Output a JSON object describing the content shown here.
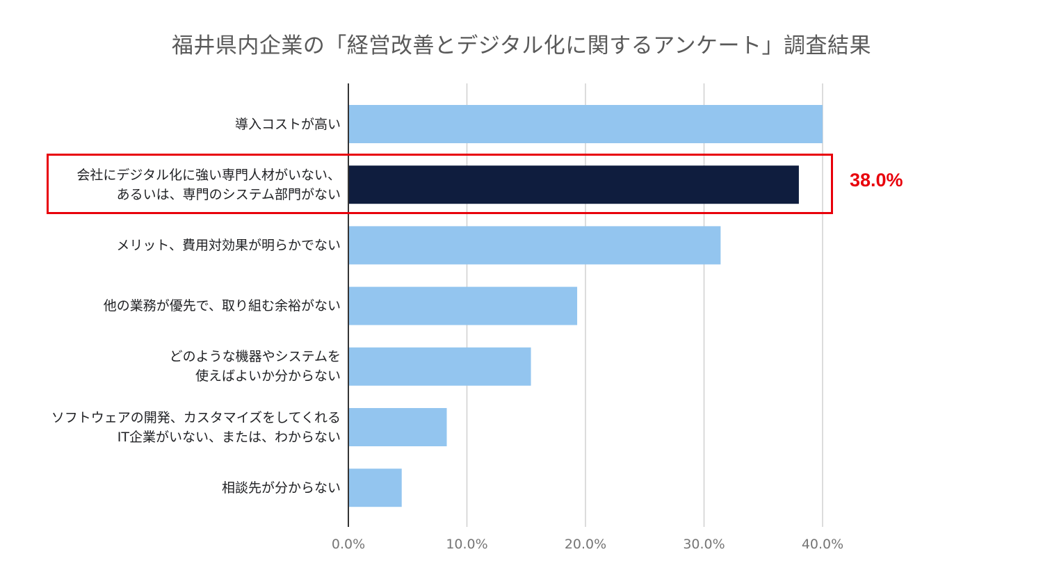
{
  "title": "福井県内企業の「経営改善とデジタル化に関するアンケート」調査結果",
  "chart_data": {
    "type": "bar",
    "orientation": "horizontal",
    "title": "福井県内企業の「経営改善とデジタル化に関するアンケート」調査結果",
    "categories": [
      [
        "導入コストが高い"
      ],
      [
        "会社にデジタル化に強い専門人材がいない、",
        "あるいは、専門のシステム部門がない"
      ],
      [
        "メリット、費用対効果が明らかでない"
      ],
      [
        "他の業務が優先で、取り組む余裕がない"
      ],
      [
        "どのような機器やシステムを",
        "使えばよいか分からない"
      ],
      [
        "ソフトウェアの開発、カスタマイズをしてくれる",
        "IT企業がいない、または、わからない"
      ],
      [
        "相談先が分からない"
      ]
    ],
    "values": [
      40.0,
      38.0,
      31.4,
      19.3,
      15.4,
      8.3,
      4.5
    ],
    "highlight_index": 1,
    "xlim": [
      0,
      40
    ],
    "xticks": [
      0,
      10,
      20,
      30,
      40
    ],
    "tick_labels": [
      "0.0%",
      "10.0%",
      "20.0%",
      "30.0%",
      "40.0%"
    ],
    "grid": true,
    "colors": {
      "bar": "#93c5ef",
      "highlight_bar": "#0f1d3e",
      "grid": "#d0d0d0",
      "axis": "#333333",
      "accent": "#e8000b"
    }
  },
  "highlight": {
    "label": "38.0%"
  }
}
